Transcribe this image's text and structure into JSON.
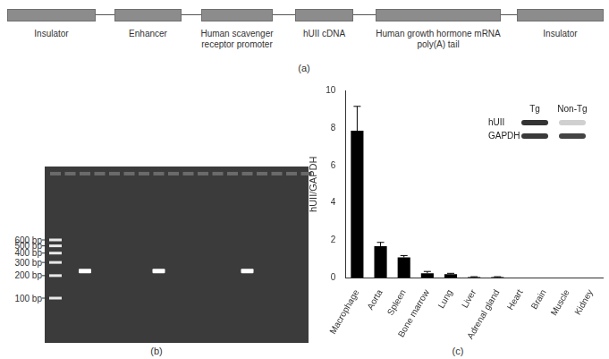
{
  "panel_labels": [
    "(a)",
    "(b)",
    "(c)"
  ],
  "construct": {
    "elements": [
      "Insulator",
      "Enhancer",
      "Human scavenger receptor promoter",
      "hUII cDNA",
      "Human growth hormone mRNA poly(A) tail",
      "Insulator"
    ]
  },
  "gel": {
    "ladder": [
      {
        "value": 600,
        "label": "600 bp"
      },
      {
        "value": 500,
        "label": "500 bp"
      },
      {
        "value": 400,
        "label": "400 bp"
      },
      {
        "value": 300,
        "label": "300 bp"
      },
      {
        "value": 200,
        "label": "200 bp"
      },
      {
        "value": 100,
        "label": "100 bp"
      }
    ],
    "lane_count": 17,
    "positive_lanes": [
      2,
      7,
      13
    ],
    "band_bp": 230
  },
  "blot": {
    "lanes": [
      "Tg",
      "Non-Tg"
    ],
    "bands": [
      "hUII",
      "GAPDH"
    ]
  },
  "chart_data": {
    "type": "bar",
    "ylabel": "hUII/GAPDH",
    "categories": [
      "Macrophage",
      "Aorta",
      "Spleen",
      "Bone marrow",
      "Lung",
      "Liver",
      "Adrenal gland",
      "Heart",
      "Brain",
      "Muscle",
      "Kidney"
    ],
    "values": [
      7.85,
      1.7,
      1.1,
      0.25,
      0.2,
      0.05,
      0.05,
      0,
      0,
      0,
      0
    ],
    "errors": [
      1.3,
      0.2,
      0.1,
      0.1,
      0.05,
      0.02,
      0.02,
      0,
      0,
      0,
      0
    ],
    "color": "#000000",
    "ylim": [
      0,
      10
    ],
    "yticks": [
      0,
      2,
      4,
      6,
      8,
      10
    ],
    "grid": false
  }
}
